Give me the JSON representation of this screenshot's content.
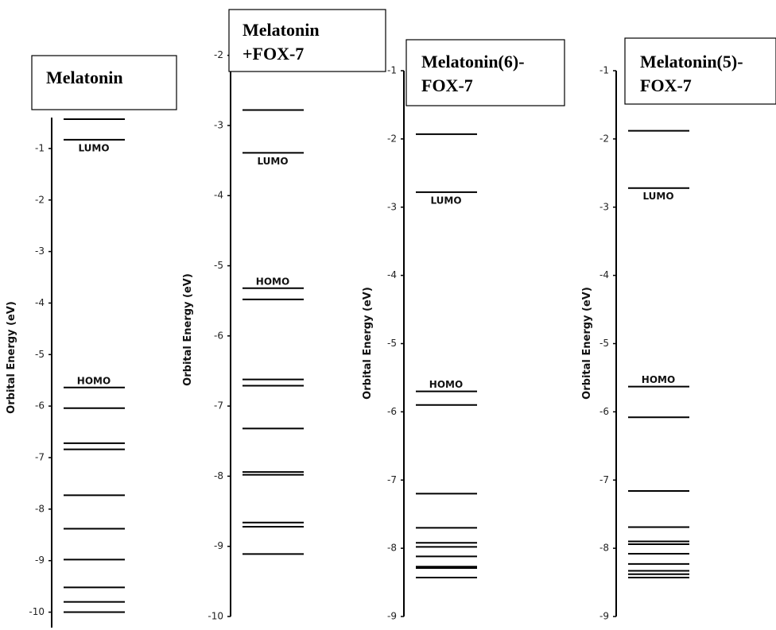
{
  "chart_data": [
    {
      "type": "energy_levels",
      "title": [
        "Melatonin"
      ],
      "y_label": "Orbital Energy (eV)",
      "ylim": [
        -10.3,
        -0.4
      ],
      "yticks": [
        -1,
        -2,
        -3,
        -4,
        -5,
        -6,
        -7,
        -8,
        -9,
        -10
      ],
      "values": [
        -0.43,
        -0.83,
        -5.64,
        -6.04,
        -6.72,
        -6.84,
        -7.73,
        -8.38,
        -8.98,
        -9.52,
        -9.8,
        -10.0
      ],
      "color": "#000000",
      "annotations": [
        {
          "text": "LUMO",
          "value": -0.83
        },
        {
          "text": "HOMO",
          "value": -5.64
        }
      ]
    },
    {
      "type": "energy_levels",
      "title": [
        "Melatonin",
        "+FOX-7"
      ],
      "y_label": "Orbital Energy (eV)",
      "ylim": [
        -10,
        -1.8
      ],
      "yticks": [
        -2,
        -3,
        -4,
        -5,
        -6,
        -7,
        -8,
        -9,
        -10
      ],
      "values": [
        -2.78,
        -3.39,
        -5.32,
        -5.48,
        -6.62,
        -6.71,
        -7.32,
        -7.94,
        -7.98,
        -8.66,
        -8.72,
        -9.11
      ],
      "color": "#000000",
      "annotations": [
        {
          "text": "LUMO",
          "value": -3.39
        },
        {
          "text": "HOMO",
          "value": -5.32
        }
      ]
    },
    {
      "type": "energy_levels",
      "title": [
        "Melatonin(6)-",
        "FOX-7"
      ],
      "y_label": "Orbital Energy (eV)",
      "ylim": [
        -9,
        -1
      ],
      "yticks": [
        -1,
        -2,
        -3,
        -4,
        -5,
        -6,
        -7,
        -8,
        -9
      ],
      "values": [
        -1.93,
        -2.78,
        -5.7,
        -5.9,
        -7.2,
        -7.7,
        -7.92,
        -7.98,
        -8.12,
        -8.27,
        -8.29,
        -8.43
      ],
      "color": "#000000",
      "annotations": [
        {
          "text": "LUMO",
          "value": -2.78
        },
        {
          "text": "HOMO",
          "value": -5.7
        }
      ]
    },
    {
      "type": "energy_levels",
      "title": [
        "Melatonin(5)-",
        "FOX-7"
      ],
      "y_label": "Orbital Energy (eV)",
      "ylim": [
        -9,
        -1
      ],
      "yticks": [
        -1,
        -2,
        -3,
        -4,
        -5,
        -6,
        -7,
        -8,
        -9
      ],
      "values": [
        -1.88,
        -2.72,
        -5.63,
        -6.08,
        -7.16,
        -7.69,
        -7.9,
        -7.94,
        -8.08,
        -8.23,
        -8.33,
        -8.38,
        -8.43
      ],
      "color": "#000000",
      "annotations": [
        {
          "text": "LUMO",
          "value": -2.72
        },
        {
          "text": "HOMO",
          "value": -5.63
        }
      ]
    }
  ]
}
